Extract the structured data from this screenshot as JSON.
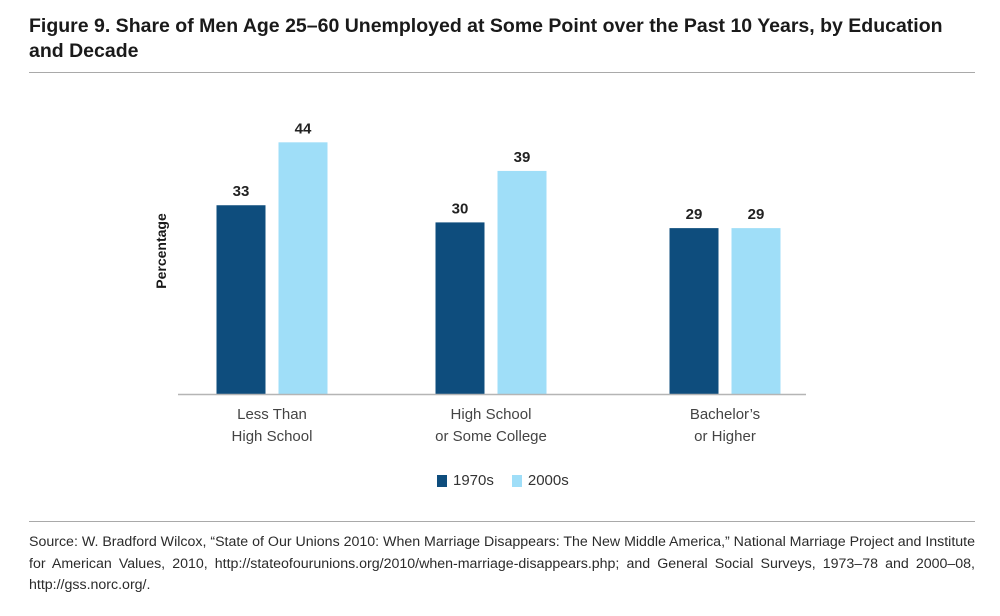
{
  "figure": {
    "title": "Figure 9. Share of Men Age 25–60 Unemployed at Some Point over the Past 10 Years, by Education and Decade",
    "source": "Source: W. Bradford Wilcox, “State of Our Unions 2010: When Marriage Disappears: The New Middle America,” National Marriage Project and Institute for American Values, 2010, http://stateofourunions.org/2010/when-marriage-disappears.php; and General Social Surveys, 1973–78 and 2000–08, http://gss.norc.org/."
  },
  "chart_data": {
    "type": "bar",
    "title": "Figure 9. Share of Men Age 25–60 Unemployed at Some Point over the Past 10 Years, by Education and Decade",
    "xlabel": "",
    "ylabel": "Percentage",
    "categories": [
      [
        "Less Than",
        "High School"
      ],
      [
        "High School",
        "or Some College"
      ],
      [
        "Bachelor’s",
        "or Higher"
      ]
    ],
    "series": [
      {
        "name": "1970s",
        "values": [
          33,
          30,
          29
        ],
        "color": "#0e4d7d"
      },
      {
        "name": "2000s",
        "values": [
          44,
          39,
          29
        ],
        "color": "#9fdef8"
      }
    ],
    "ylim": [
      0,
      47
    ],
    "grid": false,
    "legend": "bottom-center",
    "data_labels": true
  }
}
